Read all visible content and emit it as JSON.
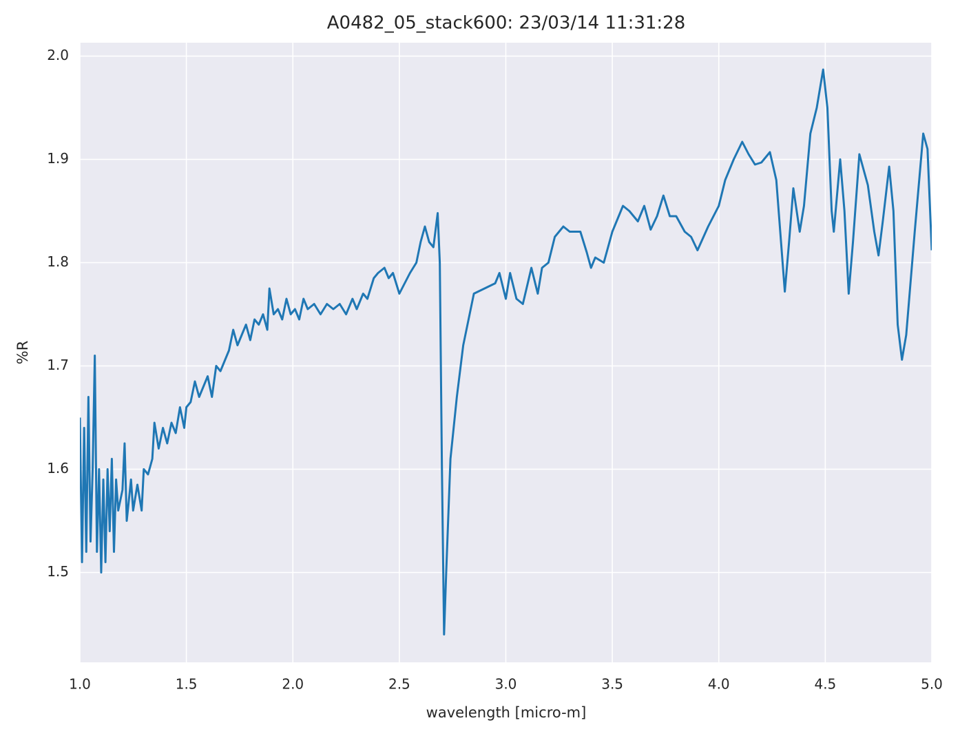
{
  "chart_data": {
    "type": "line",
    "title": "A0482_05_stack600:  23/03/14 11:31:28",
    "xlabel": "wavelength [micro-m]",
    "ylabel": "%R",
    "xlim": [
      1.0,
      5.0
    ],
    "ylim": [
      1.413,
      2.013
    ],
    "xticks": [
      {
        "value": 1,
        "label": "1.0"
      },
      1.5,
      {
        "value": 2,
        "label": "2.0"
      },
      2.5,
      {
        "value": 3,
        "label": "3.0"
      },
      3.5,
      {
        "value": 4,
        "label": "4.0"
      },
      4.5,
      {
        "value": 5,
        "label": "5.0"
      }
    ],
    "yticks": [
      1.5,
      1.6,
      1.7,
      1.8,
      1.9,
      {
        "value": 2,
        "label": "2.0"
      }
    ],
    "grid": true,
    "series": [
      {
        "name": "A0482_05_stack600",
        "color": "#1f77b4",
        "x": [
          1.0,
          1.01,
          1.02,
          1.03,
          1.04,
          1.05,
          1.06,
          1.07,
          1.08,
          1.09,
          1.1,
          1.11,
          1.12,
          1.13,
          1.14,
          1.15,
          1.16,
          1.17,
          1.18,
          1.2,
          1.21,
          1.22,
          1.24,
          1.25,
          1.27,
          1.29,
          1.3,
          1.32,
          1.34,
          1.35,
          1.37,
          1.39,
          1.41,
          1.43,
          1.45,
          1.47,
          1.49,
          1.5,
          1.52,
          1.54,
          1.56,
          1.58,
          1.6,
          1.62,
          1.64,
          1.66,
          1.68,
          1.7,
          1.72,
          1.74,
          1.76,
          1.78,
          1.8,
          1.82,
          1.84,
          1.86,
          1.88,
          1.89,
          1.91,
          1.93,
          1.95,
          1.97,
          1.99,
          2.01,
          2.03,
          2.05,
          2.07,
          2.1,
          2.13,
          2.16,
          2.19,
          2.22,
          2.25,
          2.28,
          2.3,
          2.33,
          2.35,
          2.38,
          2.4,
          2.43,
          2.45,
          2.47,
          2.5,
          2.55,
          2.58,
          2.6,
          2.62,
          2.64,
          2.66,
          2.68,
          2.69,
          2.7,
          2.71,
          2.72,
          2.74,
          2.77,
          2.8,
          2.83,
          2.85,
          2.9,
          2.95,
          2.97,
          3.0,
          3.02,
          3.05,
          3.08,
          3.12,
          3.15,
          3.17,
          3.2,
          3.23,
          3.27,
          3.3,
          3.35,
          3.38,
          3.4,
          3.42,
          3.46,
          3.5,
          3.55,
          3.58,
          3.62,
          3.65,
          3.68,
          3.71,
          3.74,
          3.77,
          3.8,
          3.84,
          3.87,
          3.9,
          3.95,
          4.0,
          4.03,
          4.07,
          4.11,
          4.14,
          4.17,
          4.2,
          4.24,
          4.27,
          4.31,
          4.33,
          4.35,
          4.38,
          4.4,
          4.43,
          4.46,
          4.49,
          4.51,
          4.53,
          4.54,
          4.57,
          4.59,
          4.61,
          4.63,
          4.66,
          4.7,
          4.73,
          4.75,
          4.77,
          4.8,
          4.82,
          4.84,
          4.86,
          4.88,
          4.92,
          4.96,
          4.98,
          5.0
        ],
        "values": [
          1.65,
          1.51,
          1.64,
          1.52,
          1.67,
          1.53,
          1.6,
          1.71,
          1.52,
          1.6,
          1.5,
          1.59,
          1.51,
          1.6,
          1.54,
          1.61,
          1.52,
          1.59,
          1.56,
          1.58,
          1.625,
          1.55,
          1.59,
          1.56,
          1.585,
          1.56,
          1.6,
          1.595,
          1.61,
          1.645,
          1.62,
          1.64,
          1.625,
          1.645,
          1.635,
          1.66,
          1.64,
          1.66,
          1.665,
          1.685,
          1.67,
          1.68,
          1.69,
          1.67,
          1.7,
          1.695,
          1.705,
          1.715,
          1.735,
          1.72,
          1.73,
          1.74,
          1.725,
          1.745,
          1.74,
          1.75,
          1.735,
          1.775,
          1.75,
          1.755,
          1.745,
          1.765,
          1.75,
          1.755,
          1.745,
          1.765,
          1.755,
          1.76,
          1.75,
          1.76,
          1.755,
          1.76,
          1.75,
          1.765,
          1.755,
          1.77,
          1.765,
          1.785,
          1.79,
          1.795,
          1.785,
          1.79,
          1.77,
          1.79,
          1.8,
          1.82,
          1.835,
          1.82,
          1.815,
          1.848,
          1.8,
          1.6,
          1.44,
          1.5,
          1.61,
          1.67,
          1.72,
          1.75,
          1.77,
          1.775,
          1.78,
          1.79,
          1.765,
          1.79,
          1.765,
          1.76,
          1.795,
          1.77,
          1.795,
          1.8,
          1.825,
          1.835,
          1.83,
          1.83,
          1.81,
          1.795,
          1.805,
          1.8,
          1.83,
          1.855,
          1.85,
          1.84,
          1.855,
          1.832,
          1.845,
          1.865,
          1.845,
          1.845,
          1.83,
          1.825,
          1.812,
          1.835,
          1.855,
          1.88,
          1.9,
          1.917,
          1.905,
          1.895,
          1.897,
          1.907,
          1.88,
          1.772,
          1.82,
          1.872,
          1.83,
          1.855,
          1.925,
          1.95,
          1.987,
          1.95,
          1.85,
          1.83,
          1.9,
          1.85,
          1.77,
          1.82,
          1.905,
          1.875,
          1.83,
          1.807,
          1.84,
          1.893,
          1.85,
          1.74,
          1.706,
          1.73,
          1.83,
          1.925,
          1.91,
          1.812
        ]
      }
    ]
  }
}
